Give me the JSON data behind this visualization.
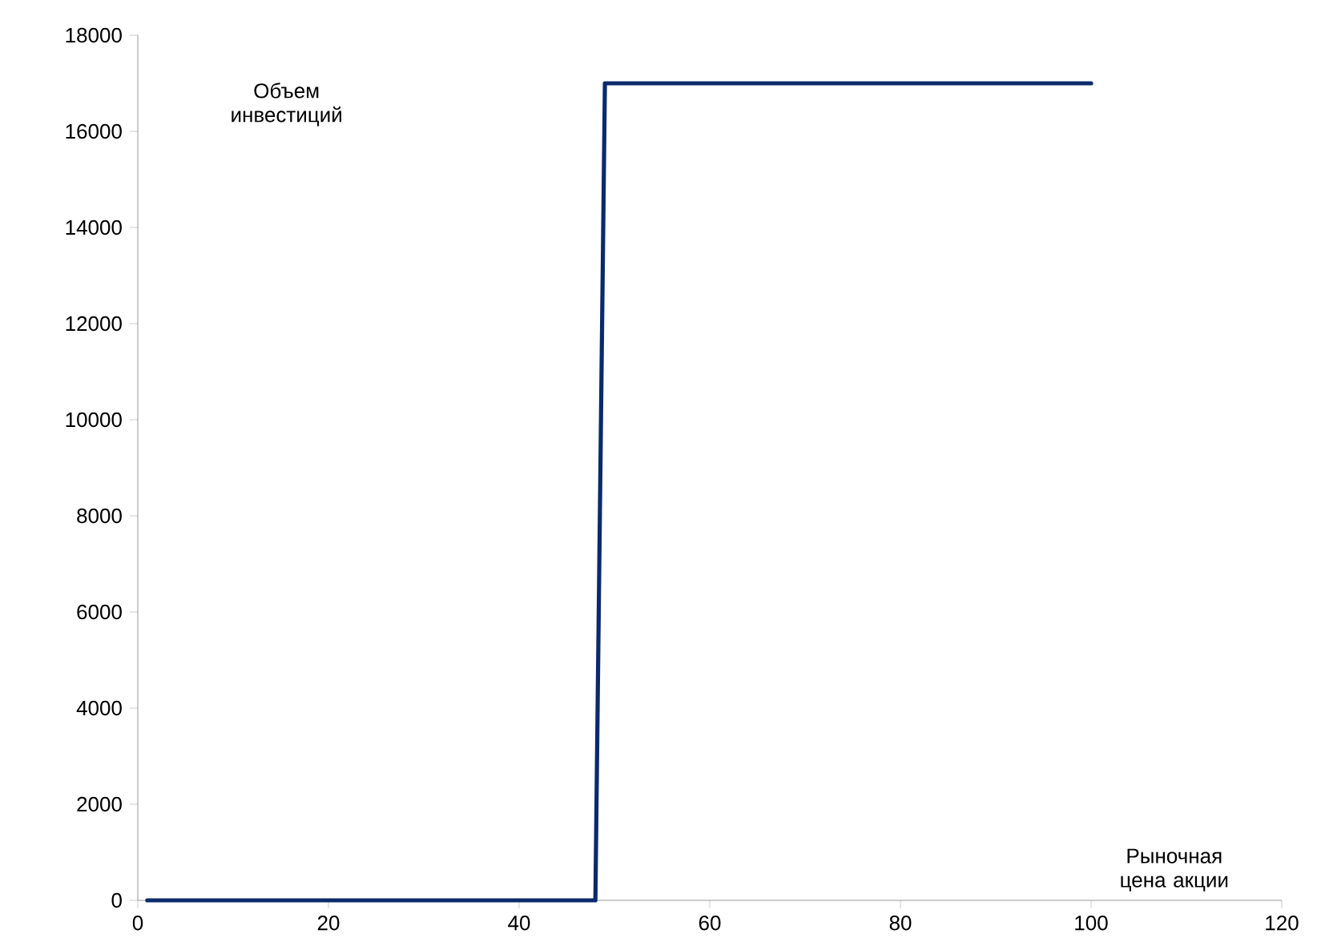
{
  "chart_data": {
    "type": "line",
    "xlabel": "Рыночная цена акции",
    "ylabel": "Объем инвестиций",
    "x": [
      1,
      48,
      49,
      100
    ],
    "series": [
      {
        "color": "#0a2a6b",
        "values": [
          0,
          0,
          17000,
          17000
        ]
      }
    ],
    "xlim": [
      0,
      120
    ],
    "xticks": [
      0,
      20,
      40,
      60,
      80,
      100,
      120
    ],
    "ylim": [
      0,
      18000
    ],
    "yticks": [
      0,
      2000,
      4000,
      6000,
      8000,
      10000,
      12000,
      14000,
      16000,
      18000
    ],
    "marker": "none",
    "line_style": "solid",
    "grid": false
  }
}
